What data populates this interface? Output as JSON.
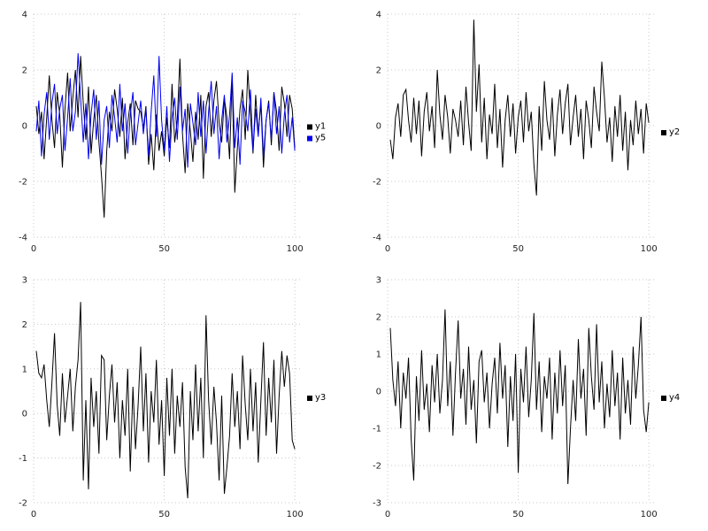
{
  "page": {
    "background": "#ffffff",
    "grid_color": "#c8c8c8",
    "tick_color": "#222222"
  },
  "chart_data": [
    {
      "type": "line",
      "panel": "top-left",
      "title": "",
      "xlabel": "",
      "ylabel": "",
      "x_range": [
        0,
        103
      ],
      "ylim": [
        -4,
        4
      ],
      "yticks": [
        -4,
        -2,
        0,
        2,
        4
      ],
      "xticks": [
        0,
        50,
        100
      ],
      "grid": true,
      "legend_position": "right",
      "series": [
        {
          "name": "y1",
          "color": "#000000",
          "values": [
            0.7,
            -0.3,
            0.5,
            -1.2,
            0.3,
            1.8,
            0.2,
            -0.8,
            1.2,
            0.4,
            -1.5,
            0.6,
            1.9,
            -0.2,
            1.0,
            2.0,
            0.3,
            2.5,
            0.8,
            -0.5,
            1.4,
            -1.0,
            0.2,
            1.1,
            -0.6,
            -1.8,
            -3.3,
            -0.9,
            0.5,
            -0.2,
            1.3,
            0.6,
            -0.4,
            1.0,
            -1.2,
            0.1,
            0.8,
            -0.7,
            0.9,
            0.6,
            0.5,
            -0.1,
            0.7,
            -1.4,
            -0.3,
            -1.6,
            0.4,
            -0.9,
            -0.2,
            -1.1,
            0.3,
            -0.8,
            1.5,
            -0.6,
            0.2,
            2.4,
            -0.3,
            -1.7,
            0.8,
            -0.2,
            -1.3,
            0.5,
            -0.5,
            1.1,
            -1.9,
            0.7,
            1.2,
            -0.4,
            0.9,
            1.6,
            0.1,
            -0.6,
            1.0,
            0.3,
            -1.2,
            1.8,
            -2.4,
            -0.8,
            0.6,
            1.3,
            -0.5,
            2.0,
            0.4,
            -1.0,
            1.1,
            -0.3,
            0.8,
            -1.5,
            0.2,
            0.9,
            -0.7,
            1.2,
            0.5,
            -0.9,
            1.4,
            0.8,
            -0.4,
            1.1,
            0.6,
            -0.8
          ]
        },
        {
          "name": "y5",
          "color": "#0000ee",
          "values": [
            -0.2,
            0.9,
            -1.1,
            0.4,
            1.2,
            -0.5,
            0.8,
            1.5,
            -0.3,
            0.6,
            1.1,
            -0.9,
            0.3,
            1.7,
            -0.2,
            0.5,
            2.6,
            1.0,
            -0.6,
            0.8,
            -1.2,
            0.4,
            1.3,
            -0.5,
            0.9,
            -1.4,
            0.2,
            0.7,
            -0.8,
            1.1,
            0.3,
            -0.6,
            1.5,
            -0.2,
            0.8,
            -1.0,
            0.4,
            1.2,
            -0.7,
            0.1,
            0.9,
            -0.3,
            0.6,
            -1.1,
            0.5,
            1.8,
            -0.4,
            2.5,
            0.2,
            -0.9,
            0.7,
            -1.3,
            0.3,
            1.0,
            -0.5,
            1.4,
            -0.2,
            0.6,
            -1.5,
            0.8,
            0.1,
            -0.7,
            1.2,
            -0.4,
            0.9,
            -1.0,
            0.5,
            1.6,
            -0.3,
            0.7,
            -1.2,
            0.2,
            1.1,
            -0.6,
            0.4,
            1.9,
            -0.8,
            0.3,
            -1.4,
            0.9,
            0.5,
            -0.2,
            1.3,
            -0.9,
            0.6,
            -0.4,
            1.0,
            -1.1,
            0.2,
            0.8,
            -0.5,
            1.2,
            -0.3,
            0.7,
            -1.0,
            0.4,
            1.1,
            -0.6,
            0.3,
            -0.9
          ]
        }
      ]
    },
    {
      "type": "line",
      "panel": "top-right",
      "title": "",
      "xlabel": "",
      "ylabel": "",
      "x_range": [
        0,
        103
      ],
      "ylim": [
        -4,
        4
      ],
      "yticks": [
        -4,
        -2,
        0,
        2,
        4
      ],
      "xticks": [
        0,
        50,
        100
      ],
      "grid": true,
      "legend_position": "right",
      "series": [
        {
          "name": "y2",
          "color": "#000000",
          "values": [
            -0.5,
            -1.2,
            0.3,
            0.8,
            -0.4,
            1.1,
            1.3,
            0.2,
            -0.6,
            1.0,
            -0.3,
            0.9,
            -1.1,
            0.5,
            1.2,
            -0.2,
            0.7,
            -0.8,
            2.0,
            0.4,
            -0.5,
            1.1,
            0.3,
            -1.0,
            0.6,
            0.2,
            -0.4,
            0.9,
            -0.7,
            1.4,
            0.1,
            -0.9,
            3.8,
            0.5,
            2.2,
            -0.6,
            1.0,
            -1.2,
            0.4,
            -0.3,
            1.5,
            -0.8,
            0.6,
            -1.5,
            0.2,
            1.1,
            -0.4,
            0.8,
            -1.0,
            0.3,
            0.9,
            -0.6,
            1.2,
            -0.2,
            0.5,
            -1.4,
            -2.5,
            0.7,
            -0.9,
            1.6,
            0.2,
            -0.5,
            1.0,
            -1.1,
            0.4,
            1.3,
            -0.3,
            0.8,
            1.5,
            -0.7,
            0.3,
            1.1,
            -0.4,
            0.6,
            -1.2,
            0.9,
            0.2,
            -0.8,
            1.4,
            0.5,
            -0.2,
            2.3,
            1.0,
            -0.6,
            0.3,
            -1.3,
            0.7,
            -0.4,
            1.1,
            -0.9,
            0.5,
            -1.6,
            0.2,
            -0.7,
            0.9,
            -0.3,
            0.6,
            -1.0,
            0.8,
            0.1
          ]
        }
      ]
    },
    {
      "type": "line",
      "panel": "bottom-left",
      "title": "",
      "xlabel": "",
      "ylabel": "",
      "x_range": [
        0,
        103
      ],
      "ylim": [
        -2,
        3
      ],
      "yticks": [
        -2,
        -1,
        0,
        1,
        2,
        3
      ],
      "xticks": [
        0,
        50,
        100
      ],
      "grid": true,
      "legend_position": "right",
      "series": [
        {
          "name": "y3",
          "color": "#000000",
          "values": [
            1.4,
            0.9,
            0.8,
            1.1,
            0.3,
            -0.3,
            0.7,
            1.8,
            0.2,
            -0.5,
            0.9,
            -0.2,
            0.4,
            1.0,
            -0.4,
            0.6,
            1.2,
            2.5,
            -1.5,
            0.3,
            -1.7,
            0.8,
            -0.3,
            0.5,
            -0.9,
            1.3,
            1.2,
            -0.6,
            0.4,
            1.1,
            -0.2,
            0.7,
            -1.0,
            0.3,
            -0.5,
            1.0,
            -1.3,
            0.6,
            -0.8,
            0.2,
            1.5,
            -0.4,
            0.9,
            -1.1,
            0.5,
            -0.2,
            1.2,
            -0.7,
            0.3,
            -1.4,
            0.8,
            -0.5,
            1.0,
            -0.9,
            0.4,
            -0.3,
            0.7,
            -1.2,
            -1.9,
            0.5,
            -0.6,
            1.1,
            -0.4,
            0.8,
            -1.0,
            2.2,
            0.3,
            -0.7,
            0.6,
            -0.2,
            -1.5,
            0.4,
            -1.8,
            -1.2,
            -0.5,
            0.9,
            -0.3,
            0.5,
            -0.8,
            1.3,
            0.2,
            -0.6,
            1.0,
            -0.4,
            0.7,
            -1.1,
            0.3,
            1.6,
            -0.5,
            0.8,
            -0.2,
            1.2,
            -0.9,
            0.4,
            1.4,
            0.6,
            1.3,
            0.9,
            -0.6,
            -0.8
          ]
        }
      ]
    },
    {
      "type": "line",
      "panel": "bottom-right",
      "title": "",
      "xlabel": "",
      "ylabel": "",
      "x_range": [
        0,
        103
      ],
      "ylim": [
        -3,
        3
      ],
      "yticks": [
        -3,
        -2,
        -1,
        0,
        1,
        2,
        3
      ],
      "xticks": [
        0,
        50,
        100
      ],
      "grid": true,
      "legend_position": "right",
      "series": [
        {
          "name": "y4",
          "color": "#000000",
          "values": [
            1.7,
            0.3,
            -0.4,
            0.8,
            -1.0,
            0.5,
            -0.2,
            0.9,
            -1.3,
            -2.4,
            0.4,
            -0.8,
            1.1,
            -0.5,
            0.2,
            -1.1,
            0.7,
            -0.3,
            1.0,
            -0.6,
            0.3,
            2.2,
            -0.4,
            0.8,
            -1.2,
            0.5,
            1.9,
            -0.2,
            0.6,
            -0.9,
            1.2,
            -0.5,
            0.3,
            -1.4,
            0.8,
            1.1,
            -0.3,
            0.5,
            -1.0,
            0.2,
            0.9,
            -0.6,
            1.3,
            -0.2,
            0.7,
            -1.5,
            0.4,
            -0.8,
            1.0,
            -2.2,
            0.6,
            -0.3,
            1.2,
            -0.7,
            0.3,
            2.1,
            -0.5,
            0.8,
            -1.1,
            0.4,
            -0.2,
            0.9,
            -1.3,
            0.5,
            -0.6,
            1.1,
            -0.4,
            0.7,
            -2.5,
            -1.0,
            0.3,
            -0.8,
            1.4,
            -0.2,
            0.6,
            -1.2,
            1.7,
            0.4,
            -0.5,
            1.8,
            -0.3,
            0.8,
            -1.0,
            0.2,
            -0.7,
            1.1,
            -0.4,
            0.5,
            -1.3,
            0.9,
            -0.6,
            0.3,
            -0.9,
            1.2,
            -0.2,
            0.7,
            2.0,
            -0.5,
            -1.1,
            -0.3
          ]
        }
      ]
    }
  ]
}
